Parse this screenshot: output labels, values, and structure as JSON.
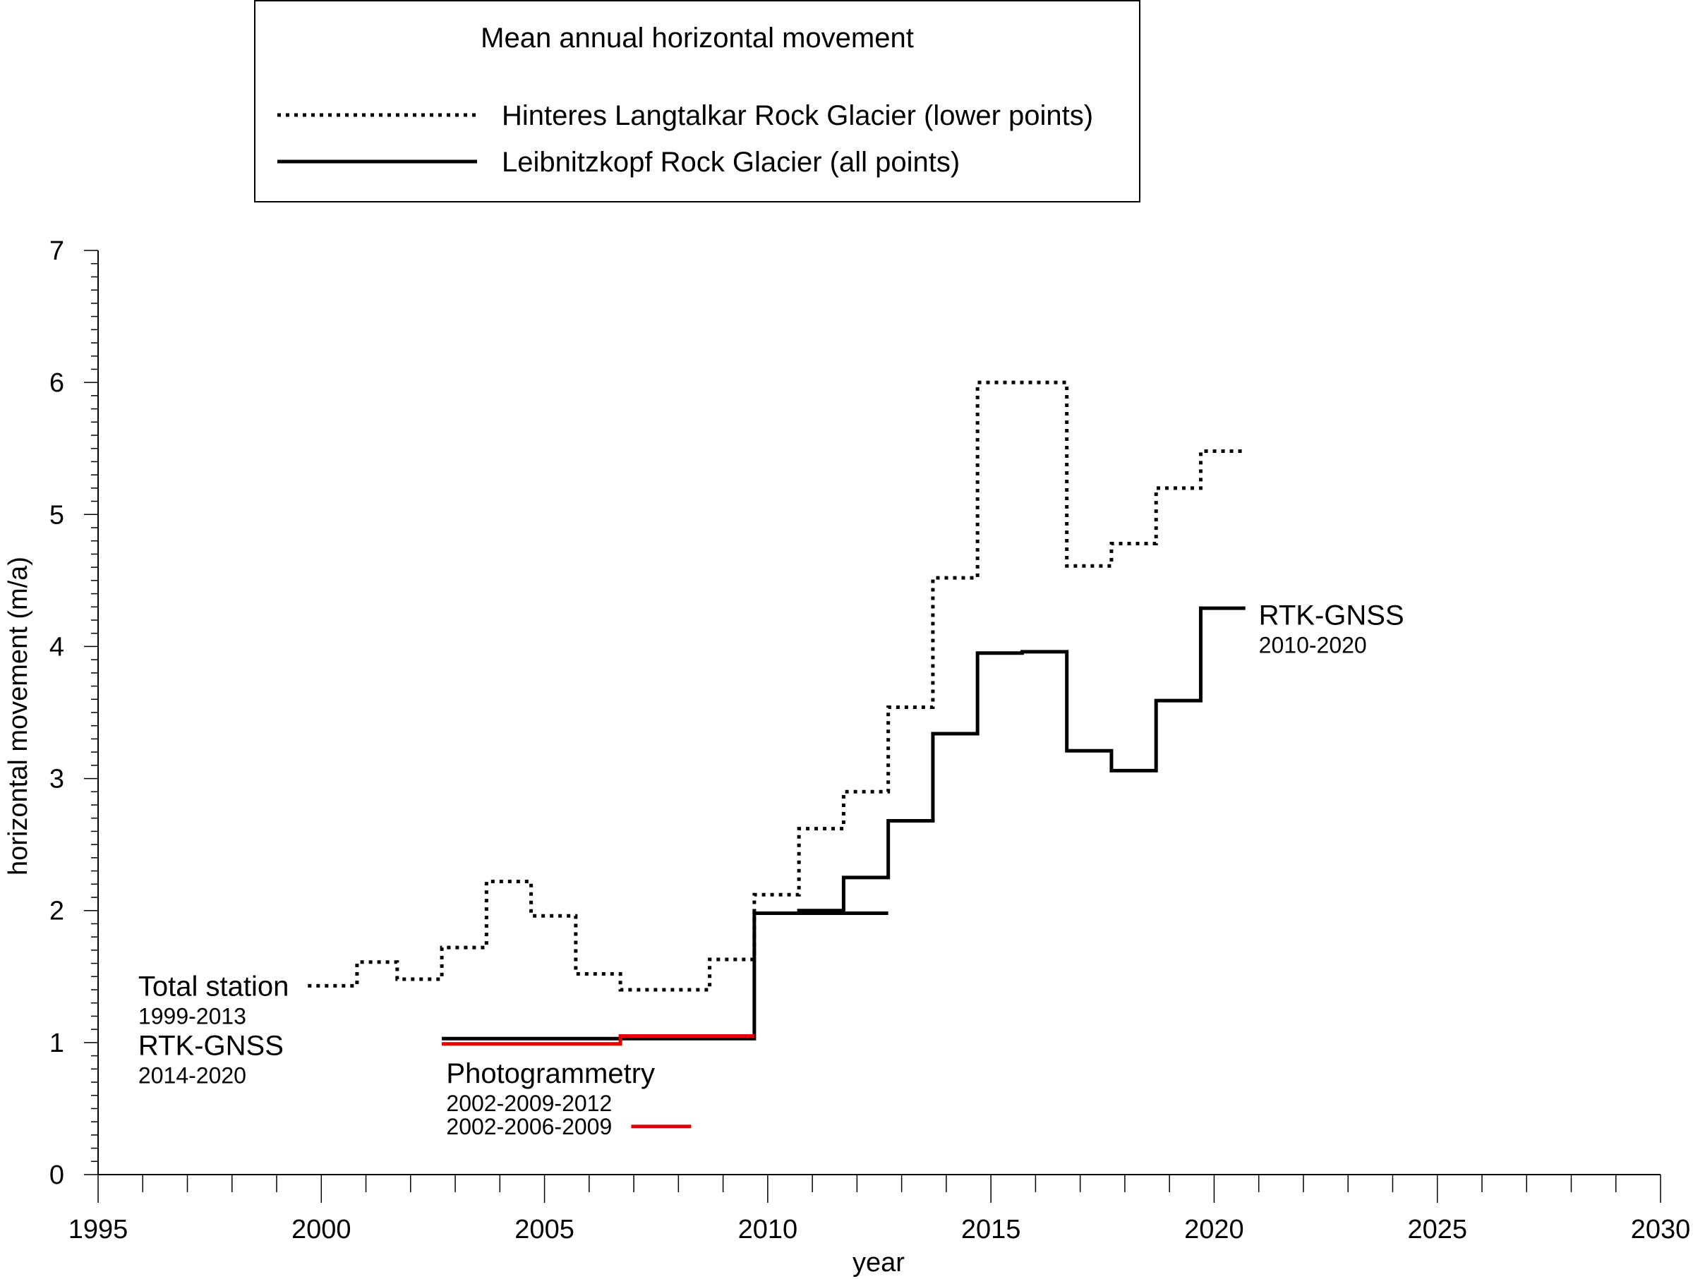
{
  "chart_data": {
    "type": "line",
    "step": true,
    "title": "",
    "xlabel": "year",
    "ylabel": "horizontal movement (m/a)",
    "xlim": [
      1995,
      2030
    ],
    "ylim": [
      0,
      7
    ],
    "x_ticks": [
      1995,
      2000,
      2005,
      2010,
      2015,
      2020,
      2025,
      2030
    ],
    "y_ticks": [
      0,
      1,
      2,
      3,
      4,
      5,
      6,
      7
    ],
    "grid": false,
    "legend": {
      "title": "Mean annual horizontal movement",
      "placement": "top-center, outside plot",
      "entries": [
        {
          "label": "Hinteres Langtalkar Rock Glacier (lower points)",
          "style": "dotted",
          "color": "#000000"
        },
        {
          "label": "Leibnitzkopf Rock Glacier (all points)",
          "style": "solid",
          "color": "#000000"
        }
      ]
    },
    "series": [
      {
        "name": "Hinteres Langtalkar Rock Glacier (lower points)",
        "style": "dotted",
        "color": "#000000",
        "segments": [
          {
            "x0": 1999.7,
            "x1": 2000.8,
            "y": 1.43
          },
          {
            "x0": 2000.8,
            "x1": 2001.7,
            "y": 1.61
          },
          {
            "x0": 2001.7,
            "x1": 2002.7,
            "y": 1.48
          },
          {
            "x0": 2002.7,
            "x1": 2003.7,
            "y": 1.72
          },
          {
            "x0": 2003.7,
            "x1": 2004.7,
            "y": 2.22
          },
          {
            "x0": 2004.7,
            "x1": 2005.7,
            "y": 1.96
          },
          {
            "x0": 2005.7,
            "x1": 2006.7,
            "y": 1.52
          },
          {
            "x0": 2006.7,
            "x1": 2008.7,
            "y": 1.4
          },
          {
            "x0": 2008.7,
            "x1": 2009.7,
            "y": 1.63
          },
          {
            "x0": 2009.7,
            "x1": 2010.7,
            "y": 2.12
          },
          {
            "x0": 2010.7,
            "x1": 2011.7,
            "y": 2.62
          },
          {
            "x0": 2011.7,
            "x1": 2012.7,
            "y": 2.9
          },
          {
            "x0": 2012.7,
            "x1": 2013.7,
            "y": 3.54
          },
          {
            "x0": 2013.7,
            "x1": 2014.7,
            "y": 4.52
          },
          {
            "x0": 2014.7,
            "x1": 2016.7,
            "y": 6.0
          },
          {
            "x0": 2016.7,
            "x1": 2017.7,
            "y": 4.61
          },
          {
            "x0": 2017.7,
            "x1": 2018.7,
            "y": 4.78
          },
          {
            "x0": 2018.7,
            "x1": 2019.7,
            "y": 5.2
          },
          {
            "x0": 2019.7,
            "x1": 2020.7,
            "y": 5.48
          }
        ]
      },
      {
        "name": "Leibnitzkopf Rock Glacier (all points)",
        "style": "solid",
        "color": "#000000",
        "segments": [
          {
            "x0": 2009.7,
            "x1": 2010.7,
            "y": 1.98
          },
          {
            "x0": 2010.7,
            "x1": 2011.7,
            "y": 2.0
          },
          {
            "x0": 2011.7,
            "x1": 2012.7,
            "y": 2.25
          },
          {
            "x0": 2012.7,
            "x1": 2013.7,
            "y": 2.68
          },
          {
            "x0": 2013.7,
            "x1": 2014.7,
            "y": 3.34
          },
          {
            "x0": 2014.7,
            "x1": 2015.7,
            "y": 3.95
          },
          {
            "x0": 2015.7,
            "x1": 2016.7,
            "y": 3.96
          },
          {
            "x0": 2016.7,
            "x1": 2017.7,
            "y": 3.21
          },
          {
            "x0": 2017.7,
            "x1": 2018.7,
            "y": 3.06
          },
          {
            "x0": 2018.7,
            "x1": 2019.7,
            "y": 3.59
          },
          {
            "x0": 2019.7,
            "x1": 2020.7,
            "y": 4.29
          }
        ]
      },
      {
        "style": "solid",
        "color": "#000000",
        "segments": [
          {
            "x0": 2002.7,
            "x1": 2009.7,
            "y": 1.03
          },
          {
            "x0": 2009.7,
            "x1": 2012.7,
            "y": 1.98
          }
        ]
      },
      {
        "style": "solid",
        "color": "#e00000",
        "segments": [
          {
            "x0": 2002.7,
            "x1": 2006.7,
            "y": 0.99
          },
          {
            "x0": 2006.7,
            "x1": 2009.7,
            "y": 1.05
          }
        ]
      }
    ],
    "annotations": [
      {
        "text": "Total station",
        "sub": "1999-2013",
        "x": 1995.9,
        "y": 1.43
      },
      {
        "text": "RTK-GNSS",
        "sub": "2014-2020",
        "x": 1995.9,
        "y": 0.98
      },
      {
        "text": "Photogrammetry",
        "sub": "2002-2009-2012",
        "x": 2002.8,
        "y": 0.77
      },
      {
        "text": "",
        "sub": "2002-2006-2009",
        "x": 2002.8,
        "y": 0.37,
        "swatch_color": "#e00000"
      },
      {
        "text": "RTK-GNSS",
        "sub": "2010-2020",
        "x": 2021.0,
        "y": 4.24
      }
    ]
  }
}
